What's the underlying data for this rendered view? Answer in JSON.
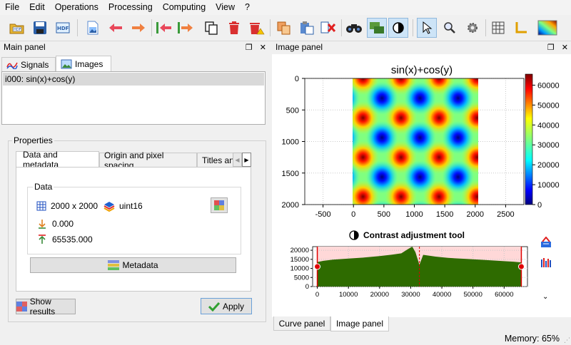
{
  "menu": [
    "File",
    "Edit",
    "Operations",
    "Processing",
    "Computing",
    "View",
    "?"
  ],
  "toolbar": {
    "icons": [
      "open-hdf5-icon",
      "save-icon",
      "browse-hdf5-icon",
      "new-image-icon",
      "move-up-icon",
      "move-down-icon",
      "prev-icon",
      "next-icon",
      "duplicate-icon",
      "delete-icon",
      "delete-all-icon",
      "copy-icon",
      "paste-icon",
      "remove-icon",
      "binoculars-icon",
      "view-mode-icon",
      "contrast-toggle-icon",
      "select-tool-icon",
      "zoom-tool-icon",
      "settings-icon",
      "grid-icon",
      "axes-icon",
      "colormap-icon"
    ]
  },
  "main_panel": {
    "title": "Main panel",
    "tabs": [
      {
        "label": "Signals"
      },
      {
        "label": "Images"
      }
    ],
    "list_items": [
      "i000: sin(x)+cos(y)"
    ],
    "properties": {
      "group_title": "Properties",
      "tabs": [
        "Data and metadata",
        "Origin and pixel spacing",
        "Titles an"
      ],
      "data_group": "Data",
      "size": "2000 x 2000",
      "dtype": "uint16",
      "min": "0.000",
      "max": "65535.000",
      "metadata_label": "Metadata"
    },
    "show_results_label": "Show results",
    "apply_label": "Apply"
  },
  "image_panel": {
    "title": "Image panel",
    "plot_title": "sin(x)+cos(y)",
    "contrast_title": "Contrast adjustment tool",
    "bottom_tabs": [
      "Curve panel",
      "Image panel"
    ]
  },
  "chart_data": [
    {
      "type": "heatmap",
      "title": "sin(x)+cos(y)",
      "x_ticks": [
        -500,
        0,
        500,
        1000,
        1500,
        2000,
        2500
      ],
      "y_ticks": [
        0,
        500,
        1000,
        1500,
        2000
      ],
      "xlim": [
        -800,
        2800
      ],
      "ylim": [
        0,
        2000
      ],
      "image_extent": [
        0,
        2000
      ],
      "colorbar_ticks": [
        0,
        10000,
        20000,
        30000,
        40000,
        50000,
        60000
      ],
      "colorbar_range": [
        0,
        65535
      ],
      "colormap": "jet",
      "grid": true
    },
    {
      "type": "area",
      "title": "Contrast adjustment tool",
      "x_ticks": [
        0,
        10000,
        20000,
        30000,
        40000,
        50000,
        60000
      ],
      "y_ticks": [
        0,
        5000,
        10000,
        15000,
        20000
      ],
      "xlim": [
        -1500,
        67500
      ],
      "ylim": [
        0,
        22000
      ],
      "x": [
        0,
        2000,
        5000,
        10000,
        15000,
        20000,
        24000,
        27000,
        29000,
        30500,
        31500,
        32800,
        34000,
        38000,
        42000,
        48000,
        54000,
        60000,
        63000,
        65535
      ],
      "y": [
        13500,
        14200,
        14800,
        15400,
        16000,
        16800,
        17600,
        18300,
        20500,
        22500,
        19000,
        12000,
        17500,
        16500,
        15800,
        15200,
        14600,
        14000,
        13700,
        13300
      ],
      "range_min": 0,
      "range_max": 65535,
      "marker": 32800,
      "fill_color": "#2e6b00"
    }
  ],
  "status": {
    "memory_label": "Memory: 65%"
  }
}
